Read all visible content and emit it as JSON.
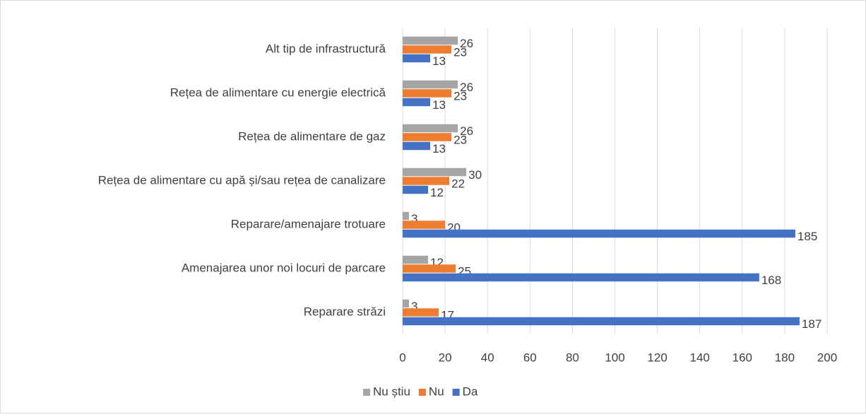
{
  "chart_data": {
    "type": "hbar",
    "categories": [
      "Alt tip de infrastructură",
      "Rețea de alimentare cu energie electrică",
      "Rețea de alimentare de gaz",
      "Rețea de alimentare cu apă și/sau rețea de canalizare",
      "Reparare/amenajare trotuare",
      "Amenajarea unor noi locuri de parcare",
      "Reparare străzi"
    ],
    "series": [
      {
        "name": "Nu știu",
        "color": "#a5a5a5",
        "values": [
          26,
          26,
          26,
          30,
          3,
          12,
          3
        ]
      },
      {
        "name": "Nu",
        "color": "#ed7d31",
        "values": [
          23,
          23,
          23,
          22,
          20,
          25,
          17
        ]
      },
      {
        "name": "Da",
        "color": "#4472c4",
        "values": [
          13,
          13,
          13,
          12,
          185,
          168,
          187
        ]
      }
    ],
    "xlim": [
      0,
      200
    ],
    "xticks": [
      0,
      20,
      40,
      60,
      80,
      100,
      120,
      140,
      160,
      180,
      200
    ],
    "grid": true,
    "legend": "bottom"
  }
}
